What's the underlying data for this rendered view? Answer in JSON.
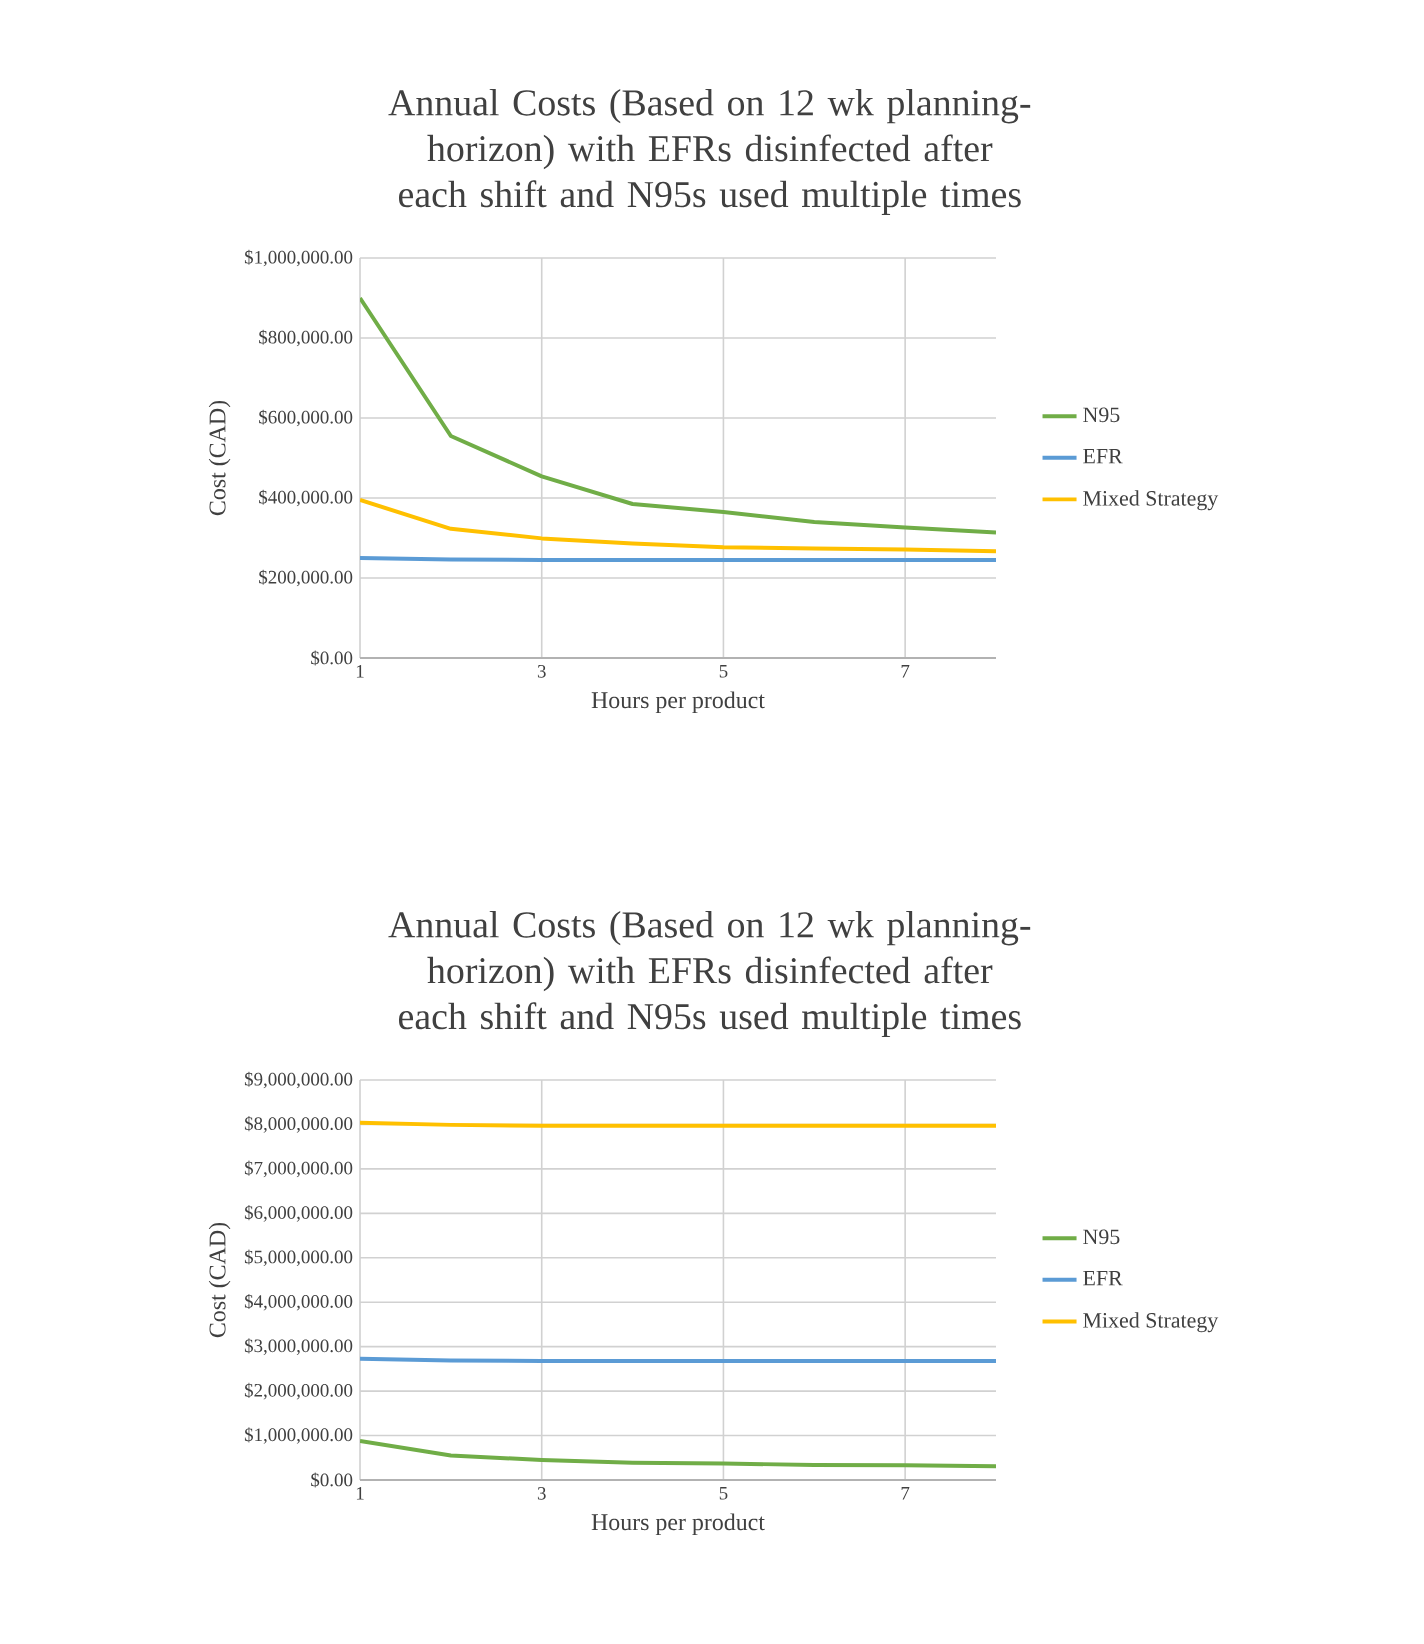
{
  "chart_data": [
    {
      "type": "line",
      "title": "Annual Costs (Based on 12 wk planning-horizon) with EFRs disinfected after each shift and N95s used multiple times",
      "xlabel": "Hours per product",
      "ylabel": "Cost (CAD)",
      "x": [
        1,
        2,
        3,
        4,
        5,
        6,
        7,
        8
      ],
      "series": [
        {
          "name": "N95",
          "color": "#70ad47",
          "values": [
            900000,
            555000,
            454000,
            385000,
            365000,
            340000,
            326000,
            314000
          ]
        },
        {
          "name": "EFR",
          "color": "#5b9bd5",
          "values": [
            250000,
            246000,
            245000,
            245000,
            245000,
            245000,
            245000,
            245000
          ]
        },
        {
          "name": "Mixed Strategy",
          "color": "#ffc000",
          "values": [
            395000,
            323000,
            299000,
            286000,
            277000,
            274000,
            271000,
            267000
          ]
        }
      ],
      "xlim": [
        1,
        8
      ],
      "xticks": [
        1,
        3,
        5,
        7
      ],
      "ylim": [
        0,
        1000000
      ],
      "yticks": [
        {
          "value": 0,
          "label": "$0.00"
        },
        {
          "value": 200000,
          "label": "$200,000.00"
        },
        {
          "value": 400000,
          "label": "$400,000.00"
        },
        {
          "value": 600000,
          "label": "$600,000.00"
        },
        {
          "value": 800000,
          "label": "$800,000.00"
        },
        {
          "value": 1000000,
          "label": "$1,000,000.00"
        }
      ],
      "grid": true,
      "legend": "right",
      "marker": "none",
      "line_style": "solid"
    },
    {
      "type": "line",
      "title": "Annual Costs (Based on 12 wk planning-horizon) with EFRs disinfected after each shift and N95s used multiple times",
      "xlabel": "Hours per product",
      "ylabel": "Cost (CAD)",
      "x": [
        1,
        2,
        3,
        4,
        5,
        6,
        7,
        8
      ],
      "series": [
        {
          "name": "N95",
          "color": "#70ad47",
          "values": [
            880000,
            550000,
            450000,
            390000,
            370000,
            340000,
            330000,
            310000
          ]
        },
        {
          "name": "EFR",
          "color": "#5b9bd5",
          "values": [
            2730000,
            2690000,
            2680000,
            2680000,
            2680000,
            2680000,
            2680000,
            2680000
          ]
        },
        {
          "name": "Mixed Strategy",
          "color": "#ffc000",
          "values": [
            8040000,
            7990000,
            7970000,
            7970000,
            7970000,
            7970000,
            7970000,
            7970000
          ]
        }
      ],
      "xlim": [
        1,
        8
      ],
      "xticks": [
        1,
        3,
        5,
        7
      ],
      "ylim": [
        0,
        9000000
      ],
      "yticks": [
        {
          "value": 0,
          "label": "$0.00"
        },
        {
          "value": 1000000,
          "label": "$1,000,000.00"
        },
        {
          "value": 2000000,
          "label": "$2,000,000.00"
        },
        {
          "value": 3000000,
          "label": "$3,000,000.00"
        },
        {
          "value": 4000000,
          "label": "$4,000,000.00"
        },
        {
          "value": 5000000,
          "label": "$5,000,000.00"
        },
        {
          "value": 6000000,
          "label": "$6,000,000.00"
        },
        {
          "value": 7000000,
          "label": "$7,000,000.00"
        },
        {
          "value": 8000000,
          "label": "$8,000,000.00"
        },
        {
          "value": 9000000,
          "label": "$9,000,000.00"
        }
      ],
      "grid": true,
      "legend": "right",
      "marker": "none",
      "line_style": "solid"
    }
  ]
}
